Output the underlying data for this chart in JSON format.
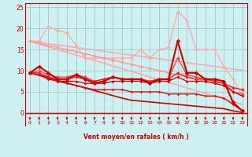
{
  "xlabel": "Vent moyen/en rafales ( km/h )",
  "background_color": "#cef0f0",
  "grid_color": "#aacccc",
  "x": [
    0,
    1,
    2,
    3,
    4,
    5,
    6,
    7,
    8,
    9,
    10,
    11,
    12,
    13,
    14,
    15,
    16,
    17,
    18,
    19,
    20,
    21,
    22,
    23
  ],
  "lines": [
    {
      "y": [
        17,
        17,
        20.5,
        19.5,
        19,
        16,
        13,
        13,
        13,
        13,
        13,
        13,
        15,
        13,
        15,
        15.5,
        24,
        22,
        15,
        15,
        15,
        11,
        8,
        4
      ],
      "color": "#ffaaaa",
      "lw": 1.0,
      "marker": "D",
      "ms": 2.0,
      "zorder": 2
    },
    {
      "y": [
        17.0,
        16.3,
        15.7,
        15.0,
        14.4,
        13.7,
        13.1,
        12.4,
        11.8,
        11.1,
        10.5,
        9.8,
        9.2,
        8.5,
        7.9,
        7.2,
        6.6,
        5.9,
        5.3,
        4.6,
        4.0,
        3.3,
        2.7,
        2.0
      ],
      "color": "#ffaaaa",
      "lw": 1.2,
      "marker": null,
      "ms": 0,
      "zorder": 1
    },
    {
      "y": [
        17.0,
        16.7,
        16.4,
        16.1,
        15.8,
        15.5,
        15.2,
        14.9,
        14.6,
        14.3,
        14.0,
        13.7,
        13.4,
        13.1,
        12.8,
        12.5,
        12.2,
        11.9,
        11.6,
        11.3,
        11.0,
        10.7,
        10.4,
        10.1
      ],
      "color": "#ffaaaa",
      "lw": 1.2,
      "marker": null,
      "ms": 0,
      "zorder": 1
    },
    {
      "y": [
        17.0,
        16.5,
        16.0,
        15.5,
        15.0,
        14.5,
        14.0,
        13.5,
        13.0,
        12.5,
        12.0,
        11.5,
        11.0,
        10.5,
        10.0,
        9.5,
        9.0,
        8.5,
        8.0,
        7.5,
        7.0,
        6.5,
        6.0,
        5.5
      ],
      "color": "#ff9999",
      "lw": 1.0,
      "marker": "D",
      "ms": 2.0,
      "zorder": 2
    },
    {
      "y": [
        9.5,
        11,
        9.5,
        8,
        8,
        9,
        8,
        7,
        7.5,
        8.5,
        8,
        8,
        8,
        7,
        8,
        8,
        17,
        9.5,
        9.5,
        8,
        8,
        7.5,
        2.5,
        0.5
      ],
      "color": "#cc0000",
      "lw": 1.5,
      "marker": "D",
      "ms": 2.5,
      "zorder": 4
    },
    {
      "y": [
        9.5,
        10,
        9.0,
        8.5,
        8.5,
        9.0,
        8.5,
        7.5,
        8.0,
        8.5,
        8.0,
        8.0,
        8.0,
        7.5,
        8.0,
        8.0,
        13.0,
        9.0,
        8.5,
        8.0,
        7.5,
        7.0,
        5.0,
        4.5
      ],
      "color": "#ff4444",
      "lw": 1.0,
      "marker": "D",
      "ms": 2.0,
      "zorder": 3
    },
    {
      "y": [
        9.5,
        9.5,
        8.5,
        8.0,
        8.0,
        8.5,
        8.0,
        7.5,
        8.0,
        8.5,
        8.0,
        8.0,
        8.0,
        7.5,
        8.0,
        8.0,
        9.5,
        8.5,
        8.0,
        8.0,
        7.5,
        7.0,
        6.0,
        5.5
      ],
      "color": "#ee2222",
      "lw": 1.0,
      "marker": "D",
      "ms": 1.8,
      "zorder": 3
    },
    {
      "y": [
        9.5,
        9.0,
        8.0,
        7.5,
        7.5,
        7.5,
        7.0,
        7.0,
        7.0,
        7.5,
        7.5,
        7.5,
        7.5,
        7.0,
        7.5,
        7.5,
        8.5,
        7.5,
        7.5,
        7.5,
        7.0,
        6.5,
        5.0,
        4.0
      ],
      "color": "#cc0000",
      "lw": 0.9,
      "marker": "D",
      "ms": 1.5,
      "zorder": 3
    },
    {
      "y": [
        9.5,
        9.0,
        8.5,
        7.5,
        7.0,
        6.5,
        6.0,
        5.5,
        5.5,
        5.5,
        5.5,
        5.0,
        5.0,
        5.0,
        5.0,
        4.5,
        4.5,
        4.5,
        4.5,
        4.0,
        4.0,
        3.5,
        2.0,
        0.5
      ],
      "color": "#dd1111",
      "lw": 1.0,
      "marker": "D",
      "ms": 1.5,
      "zorder": 3
    },
    {
      "y": [
        9.5,
        8.9,
        8.3,
        7.7,
        7.1,
        6.5,
        5.9,
        5.3,
        4.7,
        4.1,
        3.5,
        3.0,
        2.8,
        2.6,
        2.4,
        2.2,
        2.0,
        1.8,
        1.6,
        1.4,
        1.2,
        1.0,
        0.5,
        0.1
      ],
      "color": "#cc0000",
      "lw": 1.2,
      "marker": null,
      "ms": 0,
      "zorder": 2
    }
  ],
  "ylim": [
    -3,
    26
  ],
  "xlim": [
    -0.5,
    23.5
  ],
  "yticks": [
    0,
    5,
    10,
    15,
    20,
    25
  ],
  "xticks": [
    0,
    1,
    2,
    3,
    4,
    5,
    6,
    7,
    8,
    9,
    10,
    11,
    12,
    13,
    14,
    15,
    16,
    17,
    18,
    19,
    20,
    21,
    22,
    23
  ],
  "arrow_color": "#cc0000",
  "spine_color": "#cc0000",
  "tick_color": "#cc0000"
}
